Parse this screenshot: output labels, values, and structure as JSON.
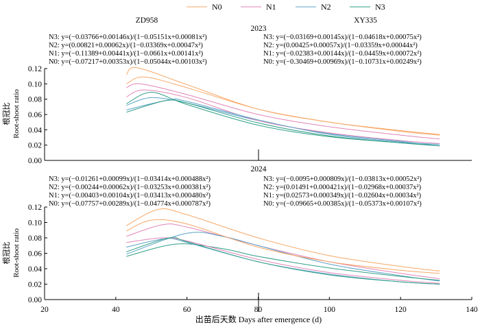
{
  "legend": {
    "entries": [
      {
        "name": "N0",
        "color": "#F7A766"
      },
      {
        "name": "N1",
        "color": "#E084B6"
      },
      {
        "name": "N2",
        "color": "#5BA2C8"
      },
      {
        "name": "N3",
        "color": "#2E9E85"
      }
    ]
  },
  "cultivars": [
    "ZD958",
    "XY335"
  ],
  "ylabel_cn": "根冠比",
  "ylabel_en": "Root-shoot ratio",
  "xlabel": "出苗后天数 Days after emergence (d)",
  "chart_data": {
    "type": "line",
    "xlim": [
      20,
      140
    ],
    "ylim": [
      0,
      0.12
    ],
    "xticks": [
      "20",
      "40",
      "60",
      "80",
      "100",
      "120",
      "140"
    ],
    "yticks": [
      "0.00",
      "0.02",
      "0.04",
      "0.06",
      "0.08",
      "0.10",
      "0.12"
    ],
    "legend_position": "top",
    "panels": [
      {
        "year": "2023",
        "cultivar": "ZD958",
        "equations": [
          "N3: y=(−0.03766+0.00146x)/(1−0.05151x+0.00081x²)",
          "N2: y=(0.00821+0.00062x)/(1−0.03369x+0.00047x²)",
          "N1: y=(−0.11389+0.00441x)/(1−0.0661x+0.00141x²)",
          "N0: y=(−0.07217+0.00353x)/(1−0.05044x+0.00103x²)"
        ],
        "series": [
          {
            "name": "N0",
            "x": [
              43,
              48,
              60,
              80,
              100,
              120,
              131
            ],
            "y": [
              0.1,
              0.109,
              0.095,
              0.067,
              0.05,
              0.038,
              0.033
            ]
          },
          {
            "name": "N1",
            "x": [
              43,
              47,
              60,
              80,
              100,
              120,
              131
            ],
            "y": [
              0.095,
              0.1,
              0.086,
              0.06,
              0.044,
              0.033,
              0.028
            ]
          },
          {
            "name": "N2",
            "x": [
              43,
              50,
              60,
              80,
              100,
              120,
              131
            ],
            "y": [
              0.072,
              0.082,
              0.075,
              0.052,
              0.035,
              0.025,
              0.019
            ]
          },
          {
            "name": "N3",
            "x": [
              43,
              50,
              60,
              80,
              100,
              120,
              131
            ],
            "y": [
              0.074,
              0.089,
              0.073,
              0.046,
              0.031,
              0.023,
              0.019
            ]
          }
        ]
      },
      {
        "year": "2023",
        "cultivar": "XY335",
        "equations": [
          "N3: y=(−0.03169+0.00145x)/(1−0.04618x+0.00075x²)",
          "N2: y=(0.00425+0.00057x)/(1−0.03359x+0.00044x²)",
          "N1: y=(−0.02383+0.00144x)/(1−0.04459x+0.00072x²)",
          "N0: y=(−0.30469+0.00969x)/(1−0.10731x+0.00249x²)"
        ],
        "series": [
          {
            "name": "N0",
            "x": [
              43,
              46,
              60,
              80,
              100,
              120,
              131
            ],
            "y": [
              0.112,
              0.121,
              0.099,
              0.067,
              0.05,
              0.039,
              0.034
            ]
          },
          {
            "name": "N1",
            "x": [
              43,
              48,
              60,
              80,
              100,
              120,
              131
            ],
            "y": [
              0.083,
              0.092,
              0.082,
              0.052,
              0.036,
              0.026,
              0.022
            ]
          },
          {
            "name": "N2",
            "x": [
              43,
              55,
              60,
              80,
              100,
              120,
              131
            ],
            "y": [
              0.066,
              0.079,
              0.077,
              0.053,
              0.034,
              0.024,
              0.021
            ]
          },
          {
            "name": "N3",
            "x": [
              43,
              54,
              60,
              80,
              100,
              120,
              131
            ],
            "y": [
              0.063,
              0.078,
              0.075,
              0.049,
              0.032,
              0.023,
              0.019
            ]
          }
        ]
      },
      {
        "year": "2024",
        "cultivar": "ZD958",
        "equations": [
          "N3: y=(−0.01261+0.00099x)/(1−0.03414x+0.000488x²)",
          "N2: y=(−0.00244+0.00062x)/(1−0.03253x+0.000381x²)",
          "N1: y=(−0.00403+0.00104x)/(1−0.03413x+0.000480x²)",
          "N0: y=(−0.07757+0.00289x)/(1−0.04774x+0.000787x²)"
        ],
        "series": [
          {
            "name": "N0",
            "x": [
              43,
              52,
              60,
              80,
              100,
              120,
              131
            ],
            "y": [
              0.096,
              0.117,
              0.11,
              0.08,
              0.057,
              0.043,
              0.037
            ]
          },
          {
            "name": "N1",
            "x": [
              43,
              53,
              60,
              80,
              100,
              120,
              131
            ],
            "y": [
              0.082,
              0.097,
              0.094,
              0.07,
              0.049,
              0.034,
              0.027
            ]
          },
          {
            "name": "N2",
            "x": [
              43,
              60,
              70,
              80,
              100,
              120,
              131
            ],
            "y": [
              0.059,
              0.086,
              0.082,
              0.07,
              0.046,
              0.031,
              0.024
            ]
          },
          {
            "name": "N3",
            "x": [
              43,
              57,
              70,
              80,
              100,
              120,
              131
            ],
            "y": [
              0.056,
              0.072,
              0.066,
              0.056,
              0.041,
              0.03,
              0.025
            ]
          }
        ]
      },
      {
        "year": "2024",
        "cultivar": "XY335",
        "equations": [
          "N3: y=(−0.0095+0.000809x)/(1−0.03813x+0.00052x²)",
          "N2: y=(0.01491+0.000421x)/(1−0.02968x+0.00037x²)",
          "N1: y=(0.02573+0.000349x)/(1−0.02604x+0.00034x²)",
          "N0: y=(−0.09665+0.00385x)/(1−0.05373x+0.00107x²)"
        ],
        "series": [
          {
            "name": "N0",
            "x": [
              43,
              50,
              60,
              80,
              100,
              120,
              131
            ],
            "y": [
              0.089,
              0.103,
              0.098,
              0.068,
              0.049,
              0.038,
              0.034
            ]
          },
          {
            "name": "N1",
            "x": [
              43,
              53,
              60,
              80,
              100,
              120,
              131
            ],
            "y": [
              0.074,
              0.08,
              0.076,
              0.052,
              0.035,
              0.025,
              0.021
            ]
          },
          {
            "name": "N2",
            "x": [
              43,
              54,
              60,
              80,
              100,
              120,
              131
            ],
            "y": [
              0.068,
              0.079,
              0.074,
              0.049,
              0.033,
              0.023,
              0.02
            ]
          },
          {
            "name": "N3",
            "x": [
              43,
              55,
              60,
              80,
              100,
              120,
              131
            ],
            "y": [
              0.062,
              0.08,
              0.075,
              0.049,
              0.032,
              0.023,
              0.02
            ]
          }
        ]
      }
    ]
  }
}
